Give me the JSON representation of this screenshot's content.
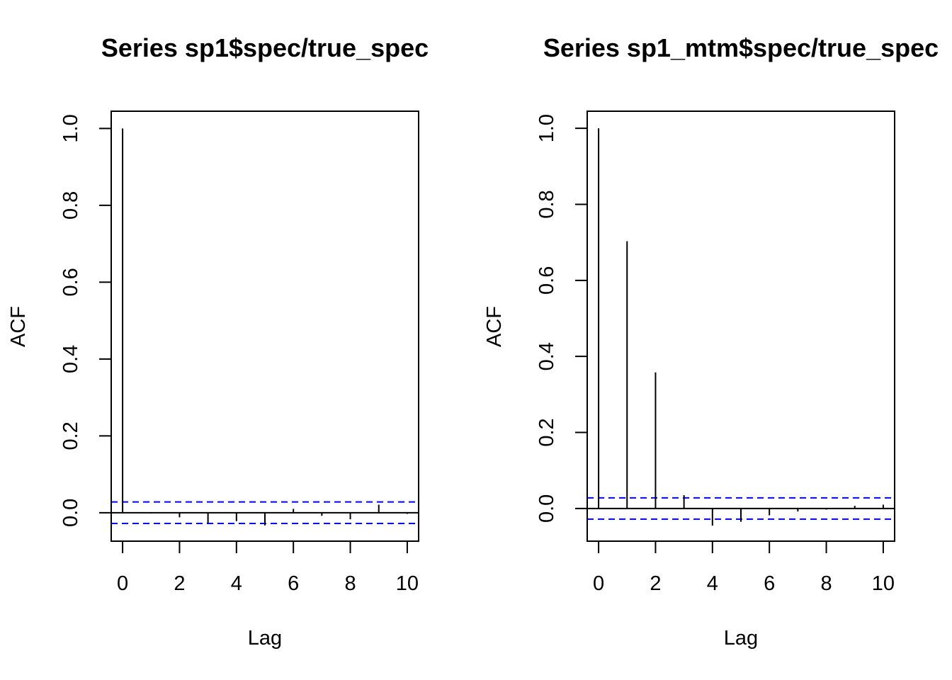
{
  "chart_data": [
    {
      "type": "bar",
      "title": "Series  sp1$spec/true_spec",
      "xlabel": "Lag",
      "ylabel": "ACF",
      "xlim": [
        -0.4,
        10.4
      ],
      "ylim": [
        -0.074,
        1.045
      ],
      "xticks": [
        0,
        2,
        4,
        6,
        8,
        10
      ],
      "yticks": [
        0.0,
        0.2,
        0.4,
        0.6,
        0.8,
        1.0
      ],
      "xtick_labels": [
        "0",
        "2",
        "4",
        "6",
        "8",
        "10"
      ],
      "ytick_labels": [
        "0.0",
        "0.2",
        "0.4",
        "0.6",
        "0.8",
        "1.0"
      ],
      "x": [
        0,
        1,
        2,
        3,
        4,
        5,
        6,
        7,
        8,
        9,
        10
      ],
      "values": [
        1.0,
        -0.002,
        -0.012,
        -0.028,
        -0.022,
        -0.033,
        0.01,
        -0.008,
        -0.017,
        0.021,
        -0.003
      ],
      "ci": 0.028,
      "ci_color": "#0000ff",
      "grid": false
    },
    {
      "type": "bar",
      "title": "Series  sp1_mtm$spec/true_spec",
      "xlabel": "Lag",
      "ylabel": "ACF",
      "xlim": [
        -0.4,
        10.4
      ],
      "ylim": [
        -0.086,
        1.045
      ],
      "xticks": [
        0,
        2,
        4,
        6,
        8,
        10
      ],
      "yticks": [
        0.0,
        0.2,
        0.4,
        0.6,
        0.8,
        1.0
      ],
      "xtick_labels": [
        "0",
        "2",
        "4",
        "6",
        "8",
        "10"
      ],
      "ytick_labels": [
        "0.0",
        "0.2",
        "0.4",
        "0.6",
        "0.8",
        "1.0"
      ],
      "x": [
        0,
        1,
        2,
        3,
        4,
        5,
        6,
        7,
        8,
        9,
        10
      ],
      "values": [
        1.0,
        0.703,
        0.358,
        0.035,
        -0.045,
        -0.035,
        -0.018,
        -0.008,
        -0.003,
        0.007,
        0.01
      ],
      "ci": 0.028,
      "ci_color": "#0000ff",
      "grid": false
    }
  ]
}
